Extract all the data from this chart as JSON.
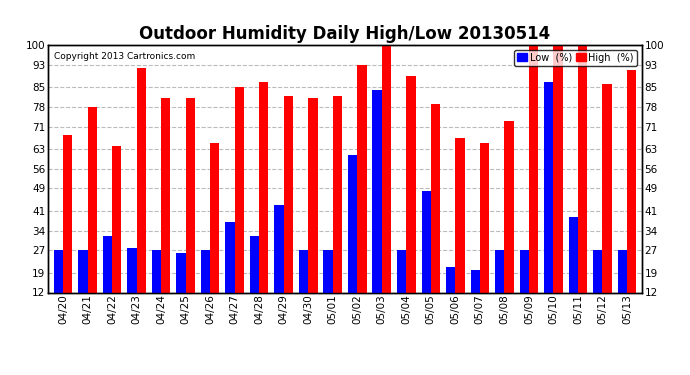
{
  "title": "Outdoor Humidity Daily High/Low 20130514",
  "copyright": "Copyright 2013 Cartronics.com",
  "categories": [
    "04/20",
    "04/21",
    "04/22",
    "04/23",
    "04/24",
    "04/25",
    "04/26",
    "04/27",
    "04/28",
    "04/29",
    "04/30",
    "05/01",
    "05/02",
    "05/03",
    "05/04",
    "05/05",
    "05/06",
    "05/07",
    "05/08",
    "05/09",
    "05/10",
    "05/11",
    "05/12",
    "05/13"
  ],
  "high_values": [
    68,
    78,
    64,
    92,
    81,
    81,
    65,
    85,
    87,
    82,
    81,
    82,
    93,
    100,
    89,
    79,
    67,
    65,
    73,
    100,
    100,
    100,
    86,
    91
  ],
  "low_values": [
    27,
    27,
    32,
    28,
    27,
    26,
    27,
    37,
    32,
    43,
    27,
    27,
    61,
    84,
    27,
    48,
    21,
    20,
    27,
    27,
    87,
    39,
    27,
    27
  ],
  "high_color": "#ff0000",
  "low_color": "#0000ff",
  "bg_color": "#ffffff",
  "plot_bg_color": "#ffffff",
  "grid_color": "#bbbbbb",
  "yticks": [
    12,
    19,
    27,
    34,
    41,
    49,
    56,
    63,
    71,
    78,
    85,
    93,
    100
  ],
  "ylim": [
    12,
    100
  ],
  "bar_width": 0.38,
  "title_fontsize": 12,
  "tick_fontsize": 7.5,
  "legend_labels": [
    "Low  (%)",
    "High  (%)"
  ]
}
